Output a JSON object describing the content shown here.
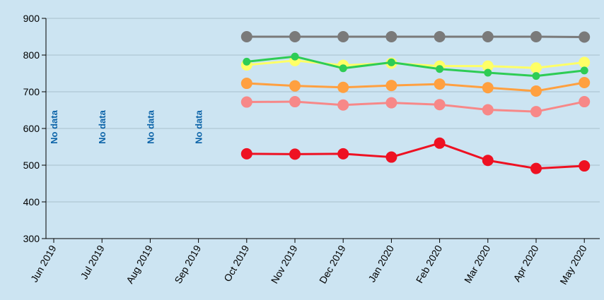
{
  "chart_data": {
    "type": "line",
    "title": "",
    "xlabel": "",
    "ylabel": "",
    "ylim": [
      300,
      900
    ],
    "yticks": [
      300,
      400,
      500,
      600,
      700,
      800,
      900
    ],
    "grid": "horizontal",
    "legend": "none",
    "categories": [
      "Jun 2019",
      "Jul 2019",
      "Aug 2019",
      "Sep 2019",
      "Oct 2019",
      "Nov 2019",
      "Dec 2019",
      "Jan 2020",
      "Feb 2020",
      "Mar 2020",
      "Apr 2020",
      "May 2020"
    ],
    "annotations": [
      {
        "category": "Jun 2019",
        "text": "No data"
      },
      {
        "category": "Jul 2019",
        "text": "No data"
      },
      {
        "category": "Aug 2019",
        "text": "No data"
      },
      {
        "category": "Sep 2019",
        "text": "No data"
      }
    ],
    "series": [
      {
        "color": "#7a7a7a",
        "values": [
          null,
          null,
          null,
          null,
          850,
          850,
          850,
          850,
          850,
          850,
          850,
          849
        ]
      },
      {
        "color": "#ffff66",
        "values": [
          null,
          null,
          null,
          null,
          773,
          785,
          772,
          778,
          770,
          770,
          765,
          780
        ]
      },
      {
        "color": "#2ecc55",
        "values": [
          null,
          null,
          null,
          null,
          782,
          796,
          764,
          780,
          762,
          752,
          743,
          758
        ]
      },
      {
        "color": "#ffa040",
        "values": [
          null,
          null,
          null,
          null,
          723,
          716,
          712,
          717,
          721,
          711,
          702,
          725
        ]
      },
      {
        "color": "#f78888",
        "values": [
          null,
          null,
          null,
          null,
          672,
          673,
          664,
          670,
          665,
          651,
          646,
          673
        ]
      },
      {
        "color": "#ee1122",
        "values": [
          null,
          null,
          null,
          null,
          531,
          530,
          531,
          522,
          560,
          513,
          491,
          498
        ]
      }
    ]
  }
}
